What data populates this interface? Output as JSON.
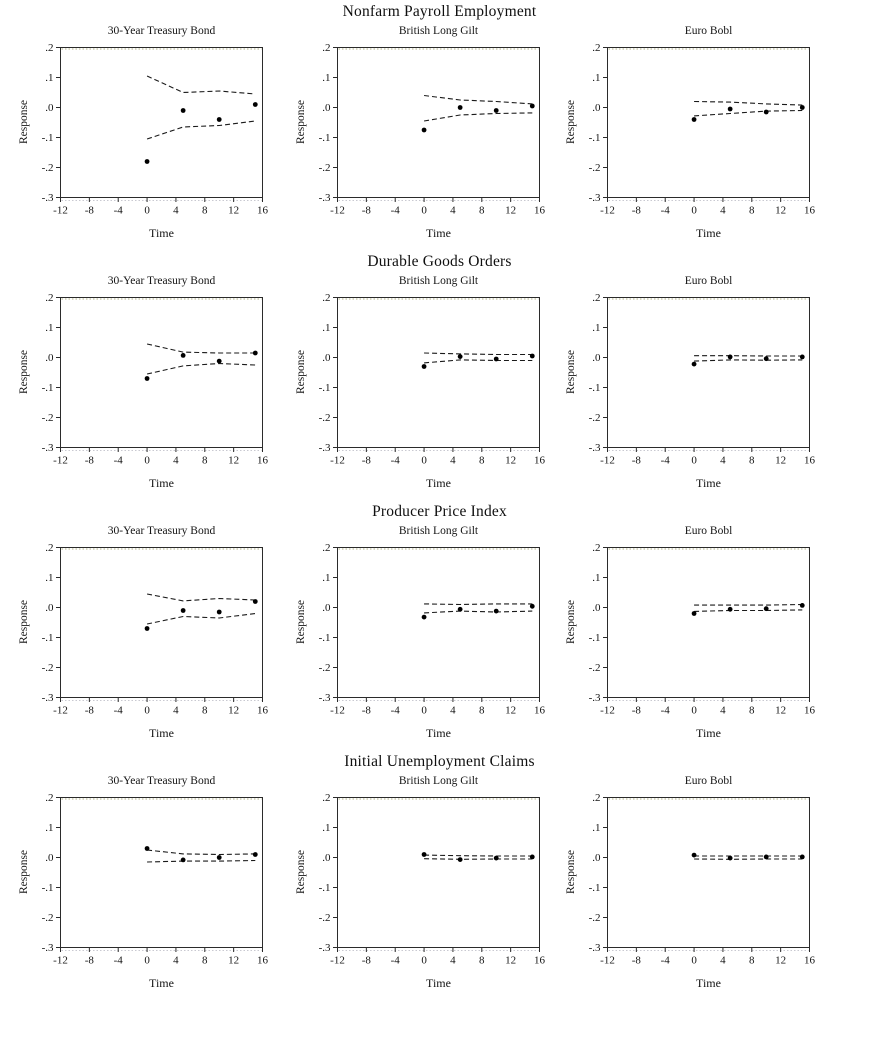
{
  "axes": {
    "ylabel": "Response",
    "xlabel": "Time",
    "xlim": [
      -12,
      16
    ],
    "ylim": [
      -0.3,
      0.2
    ],
    "xticks": [
      -12,
      -8,
      -4,
      0,
      4,
      8,
      12,
      16
    ],
    "xtick_labels": [
      "-12",
      "-8",
      "-4",
      "0",
      "4",
      "8",
      "12",
      "16"
    ],
    "yticks": [
      0.2,
      0.1,
      0.0,
      -0.1,
      -0.2,
      -0.3
    ],
    "ytick_labels": [
      ".2",
      ".1",
      ".0",
      "-.1",
      "-.2",
      "-.3"
    ],
    "grid": "off; faint dotted guide along top and bottom frame edges",
    "legend": "none",
    "frame_color": "#2b2b2b",
    "text_color": "#141414",
    "point_color": "#000000",
    "band_color": "#1a1a1a",
    "top_guide_color": "#b6b68a",
    "bottom_guide_color": "#c9c9d1"
  },
  "chart_data": [
    {
      "type": "scatter",
      "group_title": "Nonfarm Payroll Employment",
      "panels": [
        {
          "title": "30-Year Treasury Bond",
          "x": [
            0,
            5,
            10,
            15
          ],
          "response": [
            -0.18,
            -0.01,
            -0.04,
            0.01
          ],
          "upper_band": [
            0.105,
            0.05,
            0.055,
            0.045
          ],
          "lower_band": [
            -0.105,
            -0.065,
            -0.06,
            -0.045
          ]
        },
        {
          "title": "British Long Gilt",
          "x": [
            0,
            5,
            10,
            15
          ],
          "response": [
            -0.075,
            0.0,
            -0.01,
            0.005
          ],
          "upper_band": [
            0.04,
            0.025,
            0.02,
            0.012
          ],
          "lower_band": [
            -0.045,
            -0.025,
            -0.02,
            -0.018
          ]
        },
        {
          "title": "Euro Bobl",
          "x": [
            0,
            5,
            10,
            15
          ],
          "response": [
            -0.04,
            -0.005,
            -0.015,
            0.0
          ],
          "upper_band": [
            0.02,
            0.018,
            0.012,
            0.008
          ],
          "lower_band": [
            -0.028,
            -0.02,
            -0.012,
            -0.01
          ]
        }
      ]
    },
    {
      "type": "scatter",
      "group_title": "Durable Goods Orders",
      "panels": [
        {
          "title": "30-Year Treasury Bond",
          "x": [
            0,
            5,
            10,
            15
          ],
          "response": [
            -0.07,
            0.007,
            -0.012,
            0.015
          ],
          "upper_band": [
            0.045,
            0.018,
            0.015,
            0.015
          ],
          "lower_band": [
            -0.055,
            -0.028,
            -0.02,
            -0.025
          ]
        },
        {
          "title": "British Long Gilt",
          "x": [
            0,
            5,
            10,
            15
          ],
          "response": [
            -0.03,
            0.003,
            -0.005,
            0.005
          ],
          "upper_band": [
            0.015,
            0.012,
            0.01,
            0.01
          ],
          "lower_band": [
            -0.018,
            -0.008,
            -0.01,
            -0.01
          ]
        },
        {
          "title": "Euro Bobl",
          "x": [
            0,
            5,
            10,
            15
          ],
          "response": [
            -0.022,
            0.002,
            -0.004,
            0.002
          ],
          "upper_band": [
            0.006,
            0.006,
            0.005,
            0.005
          ],
          "lower_band": [
            -0.012,
            -0.008,
            -0.009,
            -0.008
          ]
        }
      ]
    },
    {
      "type": "scatter",
      "group_title": "Producer Price Index",
      "panels": [
        {
          "title": "30-Year Treasury Bond",
          "x": [
            0,
            5,
            10,
            15
          ],
          "response": [
            -0.07,
            -0.01,
            -0.015,
            0.02
          ],
          "upper_band": [
            0.045,
            0.022,
            0.03,
            0.025
          ],
          "lower_band": [
            -0.055,
            -0.03,
            -0.035,
            -0.02
          ]
        },
        {
          "title": "British Long Gilt",
          "x": [
            0,
            5,
            10,
            15
          ],
          "response": [
            -0.032,
            -0.006,
            -0.012,
            0.004
          ],
          "upper_band": [
            0.012,
            0.01,
            0.012,
            0.012
          ],
          "lower_band": [
            -0.018,
            -0.012,
            -0.015,
            -0.012
          ]
        },
        {
          "title": "Euro Bobl",
          "x": [
            0,
            5,
            10,
            15
          ],
          "response": [
            -0.02,
            -0.006,
            -0.004,
            0.007
          ],
          "upper_band": [
            0.008,
            0.008,
            0.008,
            0.01
          ],
          "lower_band": [
            -0.013,
            -0.01,
            -0.01,
            -0.008
          ]
        }
      ]
    },
    {
      "type": "scatter",
      "group_title": "Initial Unemployment Claims",
      "panels": [
        {
          "title": "30-Year Treasury Bond",
          "x": [
            0,
            5,
            10,
            15
          ],
          "response": [
            0.03,
            -0.008,
            0.0,
            0.01
          ],
          "upper_band": [
            0.025,
            0.012,
            0.01,
            0.012
          ],
          "lower_band": [
            -0.015,
            -0.012,
            -0.012,
            -0.01
          ]
        },
        {
          "title": "British Long Gilt",
          "x": [
            0,
            5,
            10,
            15
          ],
          "response": [
            0.01,
            -0.007,
            -0.002,
            0.002
          ],
          "upper_band": [
            0.008,
            0.006,
            0.005,
            0.005
          ],
          "lower_band": [
            -0.004,
            -0.006,
            -0.005,
            -0.005
          ]
        },
        {
          "title": "Euro Bobl",
          "x": [
            0,
            5,
            10,
            15
          ],
          "response": [
            0.008,
            -0.002,
            0.002,
            0.002
          ],
          "upper_band": [
            0.005,
            0.005,
            0.005,
            0.005
          ],
          "lower_band": [
            -0.005,
            -0.006,
            -0.005,
            -0.005
          ]
        }
      ]
    }
  ]
}
